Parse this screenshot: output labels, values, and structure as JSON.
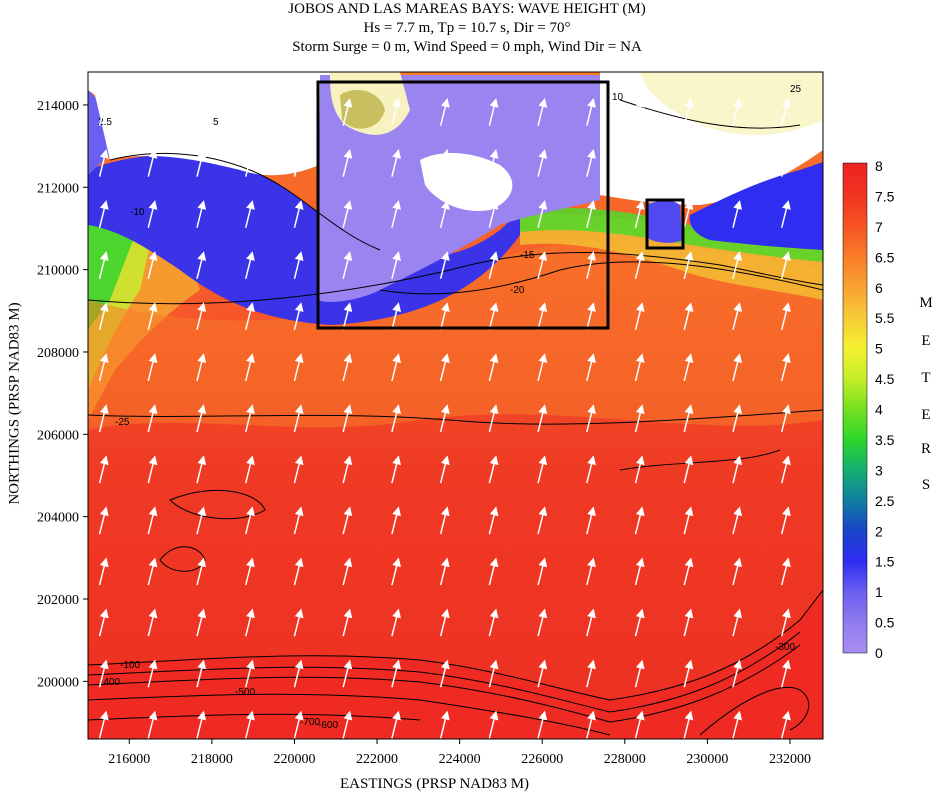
{
  "title": {
    "line1": "JOBOS AND LAS MAREAS BAYS: WAVE HEIGHT (M)",
    "line2": "Hs = 7.7 m, Tp = 10.7 s, Dir = 70°",
    "line3": "Storm Surge = 0 m, Wind Speed = 0 mph, Wind Dir = NA"
  },
  "axes": {
    "xlabel": "EASTINGS (PRSP NAD83 M)",
    "ylabel": "NORTHINGS (PRSP NAD83 M)",
    "x_ticks": [
      "216000",
      "218000",
      "220000",
      "222000",
      "224000",
      "226000",
      "228000",
      "230000",
      "232000"
    ],
    "y_ticks": [
      "214000",
      "212000",
      "210000",
      "208000",
      "206000",
      "204000",
      "202000",
      "200000"
    ],
    "x_range": [
      215000,
      232800
    ],
    "y_range": [
      198600,
      214800
    ]
  },
  "colorbar": {
    "units_letters": [
      "M",
      "E",
      "T",
      "E",
      "R",
      "S"
    ],
    "labels": [
      "8",
      "7.5",
      "7",
      "6.5",
      "6",
      "5.5",
      "5",
      "4.5",
      "4",
      "3.5",
      "3",
      "2.5",
      "2",
      "1.5",
      "1",
      "0.5",
      "0"
    ],
    "stops": [
      {
        "v": 0,
        "c": "#a98cf0"
      },
      {
        "v": 0.5,
        "c": "#8f7cf0"
      },
      {
        "v": 1,
        "c": "#6a5ff0"
      },
      {
        "v": 1.5,
        "c": "#2f2cf2"
      },
      {
        "v": 2,
        "c": "#1944c8"
      },
      {
        "v": 2.5,
        "c": "#0f80a0"
      },
      {
        "v": 3,
        "c": "#15b070"
      },
      {
        "v": 3.5,
        "c": "#2ed828"
      },
      {
        "v": 4,
        "c": "#78e020"
      },
      {
        "v": 4.5,
        "c": "#c8ee28"
      },
      {
        "v": 5,
        "c": "#f4f030"
      },
      {
        "v": 5.5,
        "c": "#f8c838"
      },
      {
        "v": 6,
        "c": "#f8a030"
      },
      {
        "v": 6.5,
        "c": "#f87a28"
      },
      {
        "v": 7,
        "c": "#f65222"
      },
      {
        "v": 7.5,
        "c": "#f03322"
      },
      {
        "v": 8,
        "c": "#ee2222"
      }
    ]
  },
  "contour_labels": [
    "2.5",
    "5",
    "10",
    "25",
    "-10",
    "-15",
    "-20",
    "-25",
    "-100",
    "-300",
    "-400",
    "-500",
    "-600",
    "-700"
  ],
  "colors": {
    "deep_red": "#ee2a22",
    "orange": "#f86a28",
    "land": "#ffffff",
    "arrow": "#ffffff",
    "box": "#000000"
  }
}
